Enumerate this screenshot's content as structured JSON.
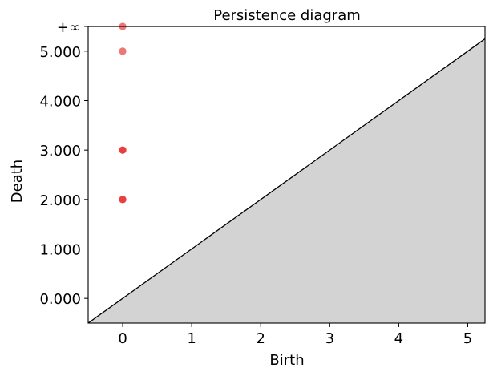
{
  "chart_data": {
    "type": "scatter",
    "title": "Persistence diagram",
    "xlabel": "Birth",
    "ylabel": "Death",
    "xlim": [
      -0.5,
      5.25
    ],
    "ylim": [
      -0.5,
      5.5
    ],
    "x_ticks": [
      {
        "value": 0,
        "label": "0"
      },
      {
        "value": 1,
        "label": "1"
      },
      {
        "value": 2,
        "label": "2"
      },
      {
        "value": 3,
        "label": "3"
      },
      {
        "value": 4,
        "label": "4"
      },
      {
        "value": 5,
        "label": "5"
      }
    ],
    "y_ticks": [
      {
        "value": 0,
        "label": "0.000"
      },
      {
        "value": 1,
        "label": "1.000"
      },
      {
        "value": 2,
        "label": "2.000"
      },
      {
        "value": 3,
        "label": "3.000"
      },
      {
        "value": 4,
        "label": "4.000"
      },
      {
        "value": 5,
        "label": "5.000"
      }
    ],
    "infinity_line": {
      "value": 5.5,
      "label": "+∞"
    },
    "diagonal": true,
    "below_diagonal_fill": "#d3d3d3",
    "point_color": "#e41a1c",
    "points": [
      {
        "birth": 0,
        "death": 2
      },
      {
        "birth": 0,
        "death": 2
      },
      {
        "birth": 0,
        "death": 3
      },
      {
        "birth": 0,
        "death": 3
      },
      {
        "birth": 0,
        "death": 5
      },
      {
        "birth": 0,
        "death": "inf"
      }
    ]
  }
}
